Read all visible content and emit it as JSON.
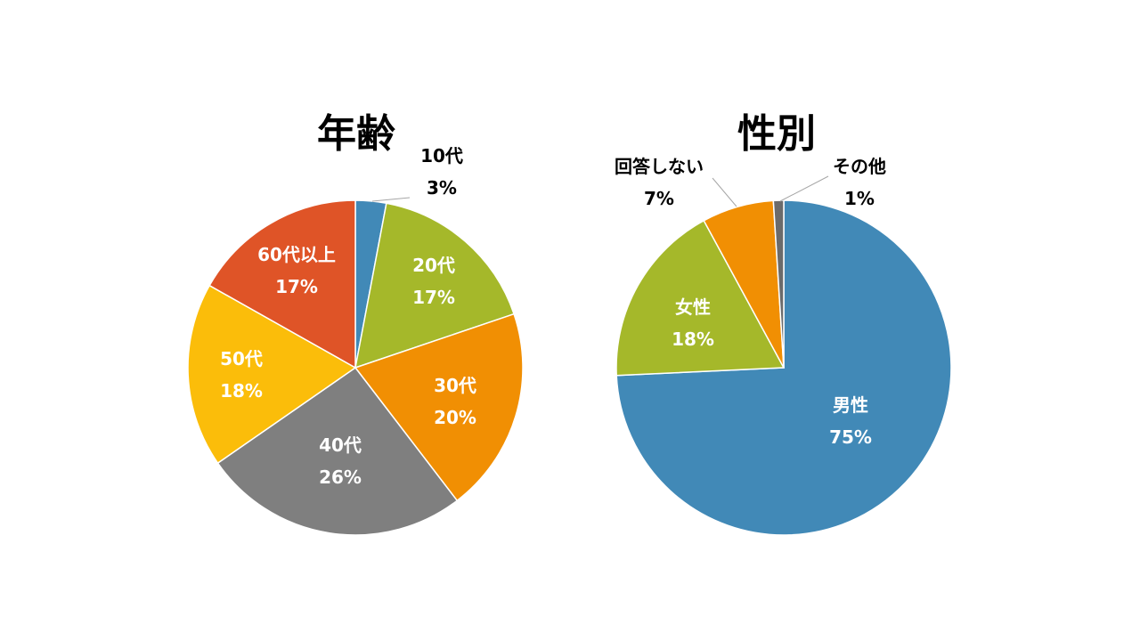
{
  "chart_data": [
    {
      "type": "pie",
      "title": "年齢",
      "slices": [
        {
          "label": "10代",
          "value": 3,
          "display": "3%",
          "color": "#4189b7"
        },
        {
          "label": "20代",
          "value": 17,
          "display": "17%",
          "color": "#a5b82a"
        },
        {
          "label": "30代",
          "value": 20,
          "display": "20%",
          "color": "#f18f03"
        },
        {
          "label": "40代",
          "value": 26,
          "display": "26%",
          "color": "#7f7f7f"
        },
        {
          "label": "50代",
          "value": 18,
          "display": "18%",
          "color": "#fbbd0a"
        },
        {
          "label": "60代以上",
          "value": 17,
          "display": "17%",
          "color": "#df5427"
        }
      ]
    },
    {
      "type": "pie",
      "title": "性別",
      "slices": [
        {
          "label": "男性",
          "value": 75,
          "display": "75%",
          "color": "#4189b7"
        },
        {
          "label": "女性",
          "value": 18,
          "display": "18%",
          "color": "#a5b82a"
        },
        {
          "label": "回答しない",
          "value": 7,
          "display": "7%",
          "color": "#f18f03"
        },
        {
          "label": "その他",
          "value": 1,
          "display": "1%",
          "color": "#6b6b6b"
        }
      ]
    }
  ]
}
